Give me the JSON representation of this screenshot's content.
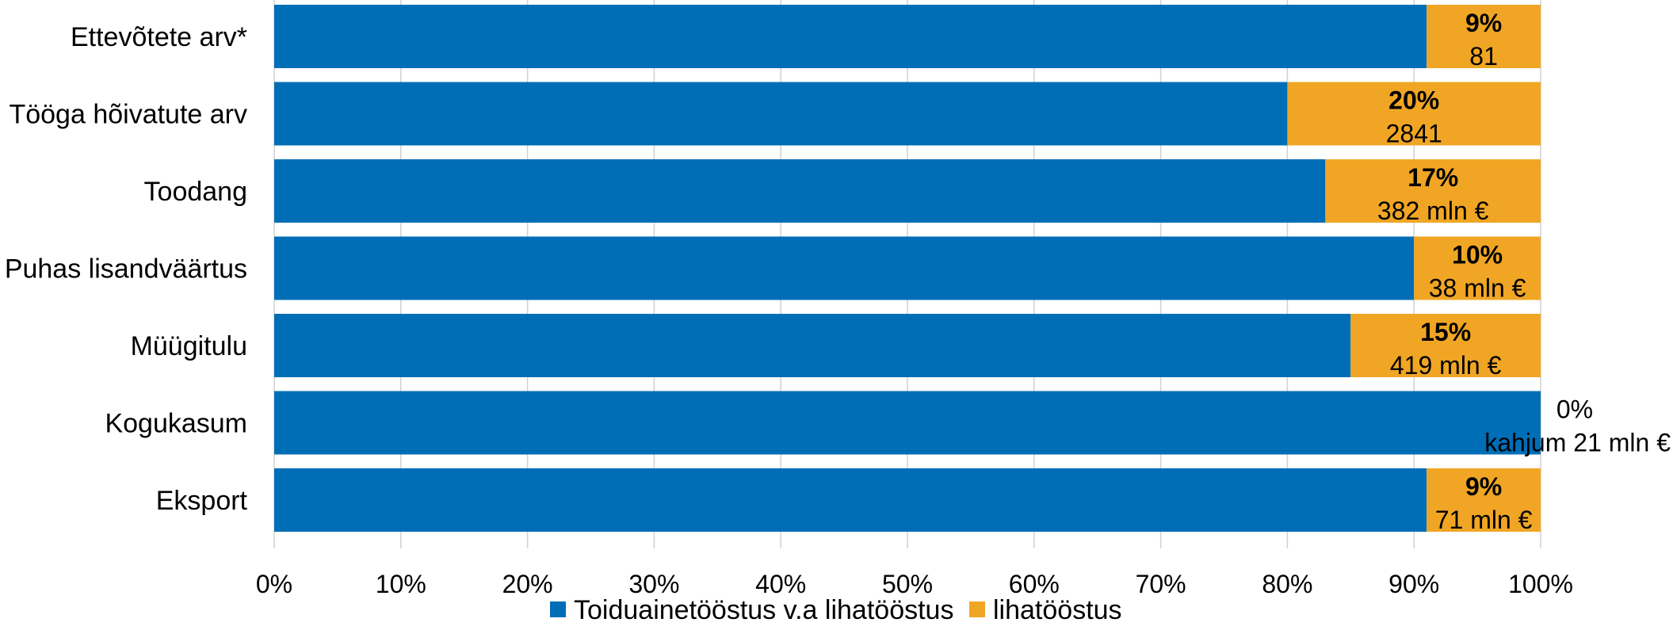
{
  "chart_data": {
    "type": "bar",
    "orientation": "horizontal",
    "stacked": "percent",
    "categories": [
      "Ettevõtete arv*",
      "Tööga hõivatute arv",
      "Toodang",
      "Puhas lisandväärtus",
      "Müügitulu",
      "Kogukasum",
      "Eksport"
    ],
    "series": [
      {
        "name": "Toiduainetööstus v.a lihatööstus",
        "color": "#006eb6",
        "values": [
          91,
          80,
          83,
          90,
          85,
          100,
          91
        ]
      },
      {
        "name": "lihatööstus",
        "color": "#f0a624",
        "values": [
          9,
          20,
          17,
          10,
          15,
          0,
          9
        ]
      }
    ],
    "data_labels": [
      {
        "pct": "9%",
        "value": "81"
      },
      {
        "pct": "20%",
        "value": "2841"
      },
      {
        "pct": "17%",
        "value": "382 mln €"
      },
      {
        "pct": "10%",
        "value": "38 mln €"
      },
      {
        "pct": "15%",
        "value": "419 mln €"
      },
      {
        "pct": "0%",
        "value": "kahjum 21 mln €"
      },
      {
        "pct": "9%",
        "value": "71 mln €"
      }
    ],
    "x_ticks": [
      "0%",
      "10%",
      "20%",
      "30%",
      "40%",
      "50%",
      "60%",
      "70%",
      "80%",
      "90%",
      "100%"
    ],
    "xlim": [
      0,
      100
    ],
    "grid": true,
    "legend_position": "bottom"
  }
}
